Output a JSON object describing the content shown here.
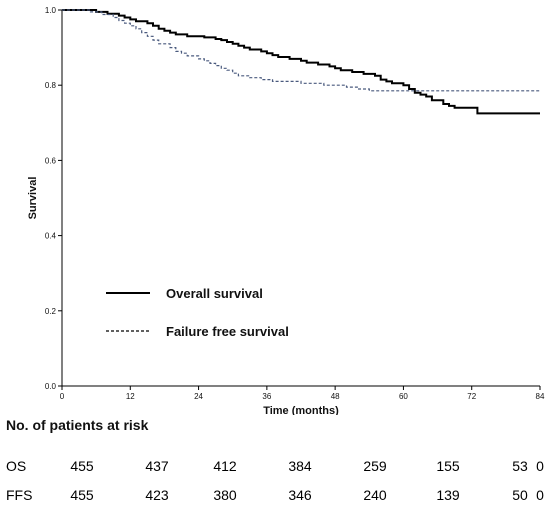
{
  "chart_data": {
    "type": "line",
    "ylabel": "Survival",
    "xlabel": "Time (months)",
    "xlim": [
      0,
      84
    ],
    "ylim": [
      0.0,
      1.0
    ],
    "x_ticks": [
      0,
      12,
      24,
      36,
      48,
      60,
      72,
      84
    ],
    "y_ticks": [
      "0.0",
      "0.2",
      "0.4",
      "0.6",
      "0.8",
      "1.0"
    ],
    "legend_position": "lower-left",
    "series": [
      {
        "name": "Overall survival",
        "style": "solid",
        "color": "#000000",
        "steps": [
          [
            0,
            1.0
          ],
          [
            6,
            0.995
          ],
          [
            8,
            0.99
          ],
          [
            10,
            0.985
          ],
          [
            11,
            0.98
          ],
          [
            12,
            0.975
          ],
          [
            13,
            0.97
          ],
          [
            15,
            0.965
          ],
          [
            16,
            0.958
          ],
          [
            17,
            0.95
          ],
          [
            18,
            0.945
          ],
          [
            19,
            0.94
          ],
          [
            20,
            0.935
          ],
          [
            22,
            0.93
          ],
          [
            25,
            0.927
          ],
          [
            27,
            0.923
          ],
          [
            28,
            0.92
          ],
          [
            29,
            0.915
          ],
          [
            30,
            0.91
          ],
          [
            31,
            0.905
          ],
          [
            32,
            0.9
          ],
          [
            33,
            0.895
          ],
          [
            35,
            0.89
          ],
          [
            36,
            0.885
          ],
          [
            37,
            0.88
          ],
          [
            38,
            0.875
          ],
          [
            40,
            0.87
          ],
          [
            42,
            0.865
          ],
          [
            43,
            0.86
          ],
          [
            45,
            0.855
          ],
          [
            47,
            0.85
          ],
          [
            48,
            0.845
          ],
          [
            49,
            0.84
          ],
          [
            51,
            0.835
          ],
          [
            53,
            0.83
          ],
          [
            55,
            0.825
          ],
          [
            56,
            0.815
          ],
          [
            57,
            0.81
          ],
          [
            58,
            0.805
          ],
          [
            60,
            0.8
          ],
          [
            61,
            0.79
          ],
          [
            62,
            0.78
          ],
          [
            63,
            0.775
          ],
          [
            64,
            0.77
          ],
          [
            65,
            0.76
          ],
          [
            67,
            0.75
          ],
          [
            68,
            0.745
          ],
          [
            69,
            0.74
          ],
          [
            73,
            0.725
          ],
          [
            84,
            0.725
          ]
        ]
      },
      {
        "name": "Failure free survival",
        "style": "dashed",
        "color": "#4a5a7e",
        "steps": [
          [
            0,
            1.0
          ],
          [
            5,
            0.995
          ],
          [
            7,
            0.988
          ],
          [
            9,
            0.98
          ],
          [
            10,
            0.972
          ],
          [
            11,
            0.965
          ],
          [
            12,
            0.958
          ],
          [
            13,
            0.95
          ],
          [
            14,
            0.94
          ],
          [
            15,
            0.93
          ],
          [
            16,
            0.92
          ],
          [
            17,
            0.91
          ],
          [
            19,
            0.9
          ],
          [
            20,
            0.89
          ],
          [
            21,
            0.885
          ],
          [
            22,
            0.878
          ],
          [
            24,
            0.87
          ],
          [
            25,
            0.865
          ],
          [
            26,
            0.858
          ],
          [
            27,
            0.852
          ],
          [
            28,
            0.845
          ],
          [
            29,
            0.84
          ],
          [
            30,
            0.832
          ],
          [
            31,
            0.825
          ],
          [
            33,
            0.82
          ],
          [
            35,
            0.815
          ],
          [
            37,
            0.81
          ],
          [
            42,
            0.805
          ],
          [
            46,
            0.8
          ],
          [
            50,
            0.795
          ],
          [
            52,
            0.79
          ],
          [
            54,
            0.785
          ],
          [
            84,
            0.785
          ]
        ]
      }
    ]
  },
  "risk_table": {
    "title": "No. of patients at risk",
    "times": [
      0,
      12,
      24,
      36,
      48,
      60,
      72,
      84
    ],
    "rows": [
      {
        "label": "OS",
        "values": [
          "455",
          "437",
          "412",
          "384",
          "259",
          "155",
          "53",
          "0"
        ]
      },
      {
        "label": "FFS",
        "values": [
          "455",
          "423",
          "380",
          "346",
          "240",
          "139",
          "50",
          "0"
        ]
      }
    ]
  }
}
